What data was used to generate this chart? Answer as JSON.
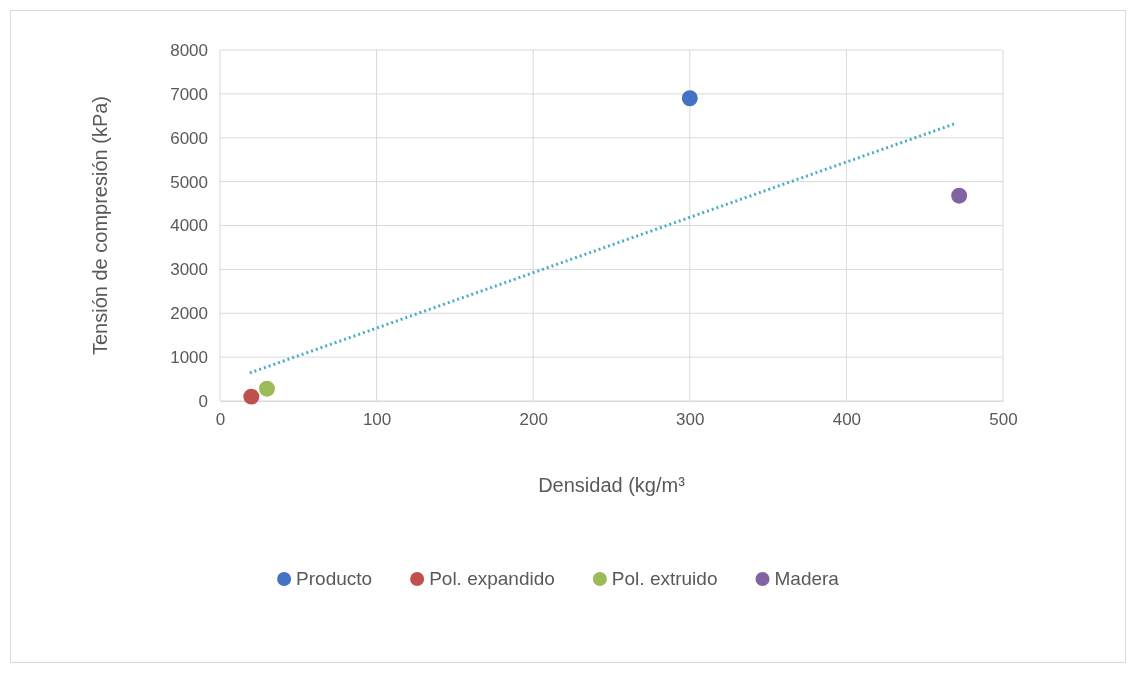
{
  "chart_data": {
    "type": "scatter",
    "xlabel": "Densidad (kg/m³",
    "ylabel": "Tensión de compresión (kPa)",
    "xlim": [
      0,
      500
    ],
    "xticks": [
      0,
      100,
      200,
      300,
      400,
      500
    ],
    "ylim": [
      0,
      8000
    ],
    "yticks": [
      0,
      1000,
      2000,
      3000,
      4000,
      5000,
      6000,
      7000,
      8000
    ],
    "grid": true,
    "legend": "bottom",
    "series": [
      {
        "name": "Producto",
        "color": "#4472c4",
        "marker": "circle",
        "x": [
          300
        ],
        "values": [
          6900
        ]
      },
      {
        "name": "Pol. expandido",
        "color": "#c0504d",
        "marker": "circle",
        "x": [
          20
        ],
        "values": [
          100
        ]
      },
      {
        "name": "Pol. extruido",
        "color": "#9bbb59",
        "marker": "circle",
        "x": [
          30
        ],
        "values": [
          280
        ]
      },
      {
        "name": "Madera",
        "color": "#8064a2",
        "marker": "circle",
        "x": [
          472
        ],
        "values": [
          4680
        ]
      },
      {
        "type": "line",
        "color": "#4bacc6",
        "line_style": "dotted",
        "x": [
          19,
          470
        ],
        "values": [
          640,
          6330
        ]
      }
    ]
  }
}
